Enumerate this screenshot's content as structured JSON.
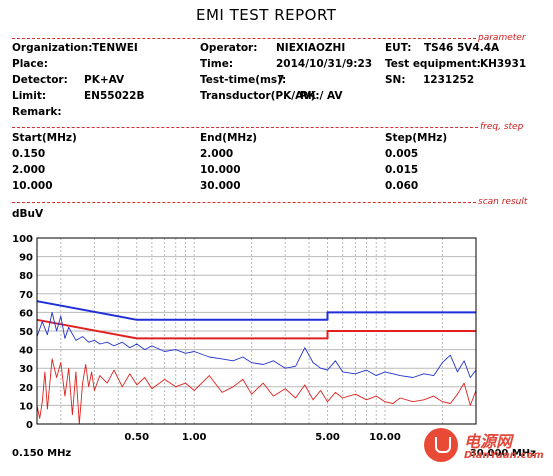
{
  "report": {
    "title": "EMI TEST REPORT",
    "sections": {
      "parameter": "parameter",
      "freq_step": "freq, step",
      "scan_result": "scan result"
    },
    "fields": {
      "organization_label": "Organization:",
      "organization": "TENWEI",
      "operator_label": "Operator:",
      "operator": "NIEXIAOZHI",
      "eut_label": "EUT:",
      "eut": "TS46 5V4.4A",
      "place_label": "Place:",
      "time_label": "Time:",
      "time": "2014/10/31/9:23",
      "test_equipment_label": "Test equipment:",
      "test_equipment": "KH3931",
      "detector_label": "Detector:",
      "detector": "PK+AV",
      "test_time_label": "Test-time(ms):",
      "test_time": "7",
      "sn_label": "SN:",
      "sn": "1231252",
      "limit_label": "Limit:",
      "limit": "EN55022B",
      "transductor_label": "Transductor(PK/AV):",
      "transductor": "PK / AV",
      "remark_label": "Remark:"
    },
    "freq_table": {
      "headers": [
        "Start(MHz)",
        "End(MHz)",
        "Step(MHz)"
      ],
      "rows": [
        [
          "0.150",
          "2.000",
          "0.005"
        ],
        [
          "2.000",
          "10.000",
          "0.015"
        ],
        [
          "10.000",
          "30.000",
          "0.060"
        ]
      ]
    }
  },
  "watermark": {
    "main": "电源网",
    "sub": "DianYuan.com"
  },
  "chart_data": {
    "type": "line",
    "ylabel": "dBuV",
    "x_scale": "log",
    "xlim": [
      0.15,
      30
    ],
    "ylim": [
      0,
      100
    ],
    "yticks": [
      0,
      10,
      20,
      30,
      40,
      50,
      60,
      70,
      80,
      90,
      100
    ],
    "yticks_labels": [
      "0",
      "10",
      "20",
      "30",
      "40",
      "50",
      "60",
      "70",
      "80",
      "90",
      "100"
    ],
    "xtick_labels": [
      {
        "x": 0.15,
        "label": "0.150 MHz"
      },
      {
        "x": 0.5,
        "label": "0.50"
      },
      {
        "x": 1,
        "label": "1.00"
      },
      {
        "x": 5,
        "label": "5.00"
      },
      {
        "x": 10,
        "label": "10.00"
      },
      {
        "x": 30,
        "label": "30.000 MHz"
      }
    ],
    "grid": true,
    "series": [
      {
        "color": "#1f2fd8",
        "style": "limit",
        "x": [
          0.15,
          0.5,
          5,
          5,
          30
        ],
        "y": [
          66,
          56,
          56,
          60,
          60
        ]
      },
      {
        "color": "#e0211f",
        "style": "limit",
        "x": [
          0.15,
          0.5,
          5,
          5,
          30
        ],
        "y": [
          56,
          46,
          46,
          50,
          50
        ]
      },
      {
        "color": "#2233cc",
        "style": "trace",
        "x": [
          0.15,
          0.16,
          0.17,
          0.18,
          0.19,
          0.2,
          0.21,
          0.22,
          0.24,
          0.26,
          0.28,
          0.3,
          0.32,
          0.35,
          0.38,
          0.42,
          0.46,
          0.5,
          0.55,
          0.6,
          0.7,
          0.8,
          0.9,
          1.0,
          1.2,
          1.4,
          1.6,
          1.8,
          2.0,
          2.3,
          2.6,
          3.0,
          3.4,
          3.8,
          4.2,
          4.6,
          5.0,
          5.5,
          6.0,
          7.0,
          8.0,
          9.0,
          10.0,
          11.0,
          12.0,
          14.0,
          16.0,
          18.0,
          20.0,
          22.0,
          24.0,
          26.0,
          28.0,
          30.0
        ],
        "y": [
          47,
          55,
          48,
          60,
          50,
          58,
          46,
          52,
          45,
          47,
          44,
          45,
          43,
          44,
          42,
          44,
          41,
          43,
          40,
          42,
          39,
          40,
          38,
          39,
          36,
          35,
          34,
          36,
          33,
          32,
          34,
          30,
          31,
          41,
          33,
          30,
          29,
          34,
          28,
          27,
          29,
          26,
          28,
          27,
          26,
          25,
          27,
          26,
          33,
          37,
          28,
          34,
          25,
          29
        ]
      },
      {
        "color": "#e0211f",
        "style": "trace",
        "x": [
          0.15,
          0.155,
          0.16,
          0.165,
          0.17,
          0.18,
          0.19,
          0.2,
          0.21,
          0.22,
          0.23,
          0.24,
          0.25,
          0.26,
          0.27,
          0.28,
          0.29,
          0.3,
          0.32,
          0.35,
          0.38,
          0.42,
          0.46,
          0.5,
          0.55,
          0.6,
          0.7,
          0.8,
          0.9,
          1.0,
          1.2,
          1.4,
          1.6,
          1.8,
          2.0,
          2.3,
          2.6,
          3.0,
          3.4,
          3.8,
          4.2,
          4.6,
          5.0,
          5.5,
          6.0,
          7.0,
          8.0,
          9.0,
          10.0,
          11.0,
          12.0,
          14.0,
          16.0,
          18.0,
          20.0,
          22.0,
          24.0,
          26.0,
          28.0,
          30.0
        ],
        "y": [
          10,
          3,
          12,
          28,
          8,
          35,
          25,
          33,
          15,
          30,
          5,
          28,
          0,
          22,
          32,
          20,
          28,
          18,
          26,
          22,
          29,
          20,
          27,
          21,
          25,
          19,
          24,
          20,
          22,
          18,
          26,
          17,
          20,
          24,
          16,
          22,
          15,
          19,
          14,
          21,
          13,
          18,
          12,
          17,
          14,
          16,
          13,
          15,
          12,
          11,
          14,
          12,
          13,
          15,
          12,
          11,
          16,
          22,
          10,
          18
        ]
      }
    ]
  }
}
